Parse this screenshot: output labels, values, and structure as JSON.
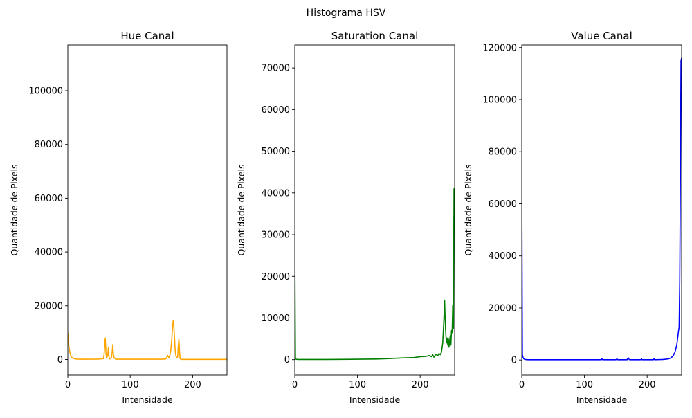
{
  "chart_data": {
    "suptitle": "Histograma HSV",
    "panels": [
      {
        "type": "line",
        "title": "Hue Canal",
        "xlabel": "Intensidade",
        "ylabel": "Quantidade de Pixels",
        "color": "#ffa500",
        "xlim": [
          0,
          255
        ],
        "ylim": [
          -5800,
          117000
        ],
        "xticks": [
          0,
          100,
          200
        ],
        "yticks": [
          0,
          20000,
          40000,
          60000,
          80000,
          100000
        ],
        "x": [
          0,
          1,
          2,
          3,
          4,
          5,
          6,
          8,
          10,
          12,
          15,
          20,
          30,
          40,
          50,
          57,
          58,
          59,
          60,
          61,
          62,
          64,
          65,
          66,
          67,
          68,
          70,
          71,
          72,
          73,
          74,
          75,
          76,
          78,
          85,
          100,
          130,
          150,
          157,
          160,
          161,
          162,
          163,
          164,
          165,
          166,
          167,
          168,
          169,
          170,
          171,
          172,
          173,
          174,
          175,
          176,
          177,
          178,
          179,
          180,
          181,
          182,
          200,
          230,
          255
        ],
        "values": [
          10000,
          6500,
          4500,
          3000,
          2000,
          1300,
          900,
          500,
          300,
          200,
          150,
          100,
          100,
          100,
          150,
          300,
          1500,
          5000,
          8000,
          3000,
          500,
          1500,
          4500,
          1000,
          200,
          300,
          800,
          2500,
          5500,
          2000,
          800,
          400,
          200,
          100,
          100,
          100,
          100,
          100,
          200,
          1500,
          1000,
          700,
          1100,
          2000,
          3500,
          6000,
          9000,
          12500,
          14500,
          12000,
          8000,
          3500,
          1500,
          800,
          600,
          1000,
          5000,
          7500,
          3000,
          300,
          100,
          50,
          50,
          50,
          50
        ]
      },
      {
        "type": "line",
        "title": "Saturation Canal",
        "xlabel": "Intensidade",
        "ylabel": "Quantidade de Pixels",
        "color": "#008000",
        "xlim": [
          0,
          255
        ],
        "ylim": [
          -3700,
          75500
        ],
        "xticks": [
          0,
          100,
          200
        ],
        "yticks": [
          0,
          10000,
          20000,
          30000,
          40000,
          50000,
          60000,
          70000
        ],
        "x": [
          0,
          1,
          2,
          5,
          10,
          50,
          100,
          130,
          150,
          170,
          190,
          200,
          210,
          215,
          218,
          220,
          222,
          225,
          228,
          230,
          232,
          234,
          236,
          237,
          238,
          239,
          240,
          241,
          242,
          243,
          244,
          245,
          246,
          247,
          248,
          249,
          250,
          251,
          252,
          253,
          254,
          255
        ],
        "values": [
          27000,
          500,
          100,
          50,
          50,
          50,
          100,
          150,
          250,
          400,
          500,
          700,
          800,
          1000,
          700,
          1200,
          600,
          1300,
          900,
          1500,
          1200,
          1800,
          4000,
          7000,
          10000,
          14300,
          9000,
          6000,
          4000,
          5200,
          3500,
          5000,
          3000,
          4500,
          5800,
          3500,
          7000,
          6500,
          13000,
          7500,
          41000,
          30000
        ]
      },
      {
        "type": "line",
        "title": "Value Canal",
        "xlabel": "Intensidade",
        "ylabel": "Quantidade de Pixels",
        "color": "#0000ff",
        "xlim": [
          0,
          255
        ],
        "ylim": [
          -5800,
          121000
        ],
        "xticks": [
          0,
          100,
          200
        ],
        "yticks": [
          0,
          20000,
          40000,
          60000,
          80000,
          100000,
          120000
        ],
        "x": [
          0,
          1,
          2,
          3,
          5,
          10,
          50,
          100,
          127,
          128,
          129,
          150,
          152,
          153,
          154,
          168,
          169,
          170,
          171,
          172,
          190,
          191,
          192,
          210,
          211,
          212,
          220,
          225,
          230,
          235,
          238,
          240,
          242,
          244,
          245,
          246,
          247,
          248,
          249,
          250,
          251,
          252,
          253,
          254,
          255
        ],
        "values": [
          68000,
          2000,
          1000,
          500,
          200,
          100,
          100,
          100,
          100,
          400,
          100,
          100,
          400,
          100,
          100,
          100,
          500,
          800,
          300,
          100,
          100,
          400,
          100,
          100,
          400,
          100,
          150,
          200,
          300,
          500,
          800,
          1200,
          1800,
          2800,
          3500,
          4500,
          5500,
          7000,
          9000,
          11000,
          12500,
          30000,
          70000,
          115000,
          116000
        ]
      }
    ]
  }
}
